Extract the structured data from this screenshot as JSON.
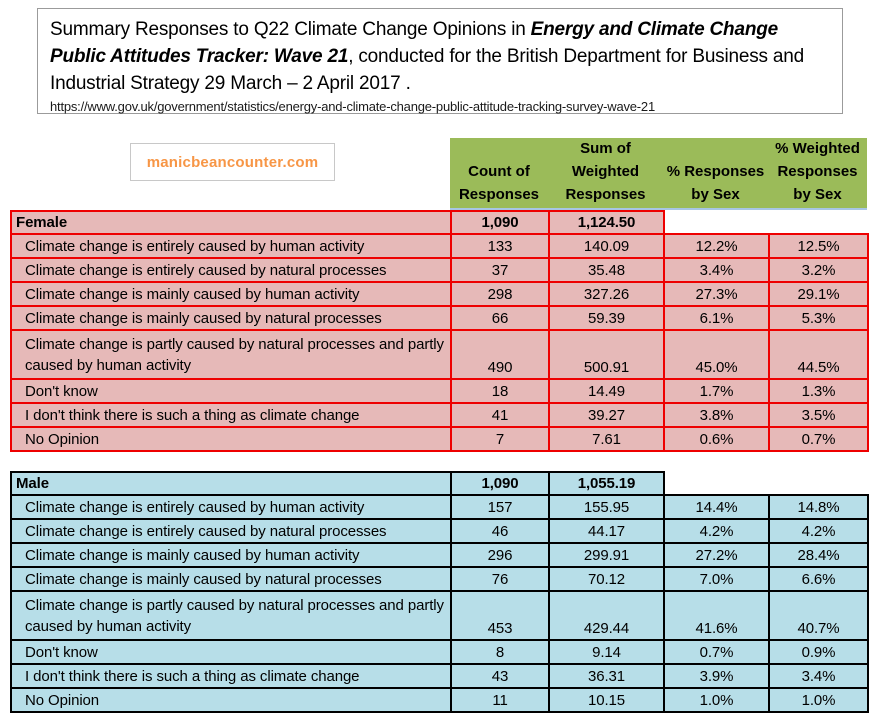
{
  "title": {
    "text_before": "Summary Responses to Q22 Climate Change Opinions in ",
    "text_emphasis": "Energy and Climate Change Public Attitudes Tracker: Wave 21",
    "text_after": ", conducted for the British Department for Business and Industrial Strategy 29 March – 2 April 2017 .",
    "url": "https://www.gov.uk/government/statistics/energy-and-climate-change-public-attitude-tracking-survey-wave-21"
  },
  "brand": {
    "label": "manicbeancounter.com"
  },
  "columns": [
    "Count of\nResponses",
    "Sum of\nWeighted\nResponses",
    "% Responses\nby Sex",
    "% Weighted\nResponses\nby Sex"
  ],
  "colors": {
    "header_green": "#9BBB59",
    "header_underline": "#A7C6E5",
    "female_fill": "#E6B9B8",
    "female_border": "#EE0000",
    "male_fill": "#B7DEE8",
    "male_border": "#000000",
    "brand_orange": "#F79646"
  },
  "tables": [
    {
      "group": "Female",
      "total_count": "1,090",
      "total_weighted": "1,124.50",
      "fill": "#E6B9B8",
      "border": "#EE0000",
      "rows": [
        {
          "label": "Climate change is entirely caused by human activity",
          "count": "133",
          "weighted": "140.09",
          "pct_responses": "12.2%",
          "pct_weighted": "12.5%",
          "tall": false
        },
        {
          "label": "Climate change is entirely caused by natural processes",
          "count": "37",
          "weighted": "35.48",
          "pct_responses": "3.4%",
          "pct_weighted": "3.2%",
          "tall": false
        },
        {
          "label": "Climate change is mainly caused by human activity",
          "count": "298",
          "weighted": "327.26",
          "pct_responses": "27.3%",
          "pct_weighted": "29.1%",
          "tall": false
        },
        {
          "label": "Climate change is mainly caused by natural processes",
          "count": "66",
          "weighted": "59.39",
          "pct_responses": "6.1%",
          "pct_weighted": "5.3%",
          "tall": false
        },
        {
          "label": "Climate change is partly caused by natural processes and partly caused by human activity",
          "count": "490",
          "weighted": "500.91",
          "pct_responses": "45.0%",
          "pct_weighted": "44.5%",
          "tall": true
        },
        {
          "label": "Don't know",
          "count": "18",
          "weighted": "14.49",
          "pct_responses": "1.7%",
          "pct_weighted": "1.3%",
          "tall": false
        },
        {
          "label": "I don't think there is such a thing as climate change",
          "count": "41",
          "weighted": "39.27",
          "pct_responses": "3.8%",
          "pct_weighted": "3.5%",
          "tall": false
        },
        {
          "label": "No Opinion",
          "count": "7",
          "weighted": "7.61",
          "pct_responses": "0.6%",
          "pct_weighted": "0.7%",
          "tall": false
        }
      ]
    },
    {
      "group": "Male",
      "total_count": "1,090",
      "total_weighted": "1,055.19",
      "fill": "#B7DEE8",
      "border": "#000000",
      "rows": [
        {
          "label": "Climate change is entirely caused by human activity",
          "count": "157",
          "weighted": "155.95",
          "pct_responses": "14.4%",
          "pct_weighted": "14.8%",
          "tall": false
        },
        {
          "label": "Climate change is entirely caused by natural processes",
          "count": "46",
          "weighted": "44.17",
          "pct_responses": "4.2%",
          "pct_weighted": "4.2%",
          "tall": false
        },
        {
          "label": "Climate change is mainly caused by human activity",
          "count": "296",
          "weighted": "299.91",
          "pct_responses": "27.2%",
          "pct_weighted": "28.4%",
          "tall": false
        },
        {
          "label": "Climate change is mainly caused by natural processes",
          "count": "76",
          "weighted": "70.12",
          "pct_responses": "7.0%",
          "pct_weighted": "6.6%",
          "tall": false
        },
        {
          "label": "Climate change is partly caused by natural processes and partly caused by human activity",
          "count": "453",
          "weighted": "429.44",
          "pct_responses": "41.6%",
          "pct_weighted": "40.7%",
          "tall": true
        },
        {
          "label": "Don't know",
          "count": "8",
          "weighted": "9.14",
          "pct_responses": "0.7%",
          "pct_weighted": "0.9%",
          "tall": false
        },
        {
          "label": "I don't think there is such a thing as climate change",
          "count": "43",
          "weighted": "36.31",
          "pct_responses": "3.9%",
          "pct_weighted": "3.4%",
          "tall": false
        },
        {
          "label": "No Opinion",
          "count": "11",
          "weighted": "10.15",
          "pct_responses": "1.0%",
          "pct_weighted": "1.0%",
          "tall": false
        }
      ]
    }
  ]
}
